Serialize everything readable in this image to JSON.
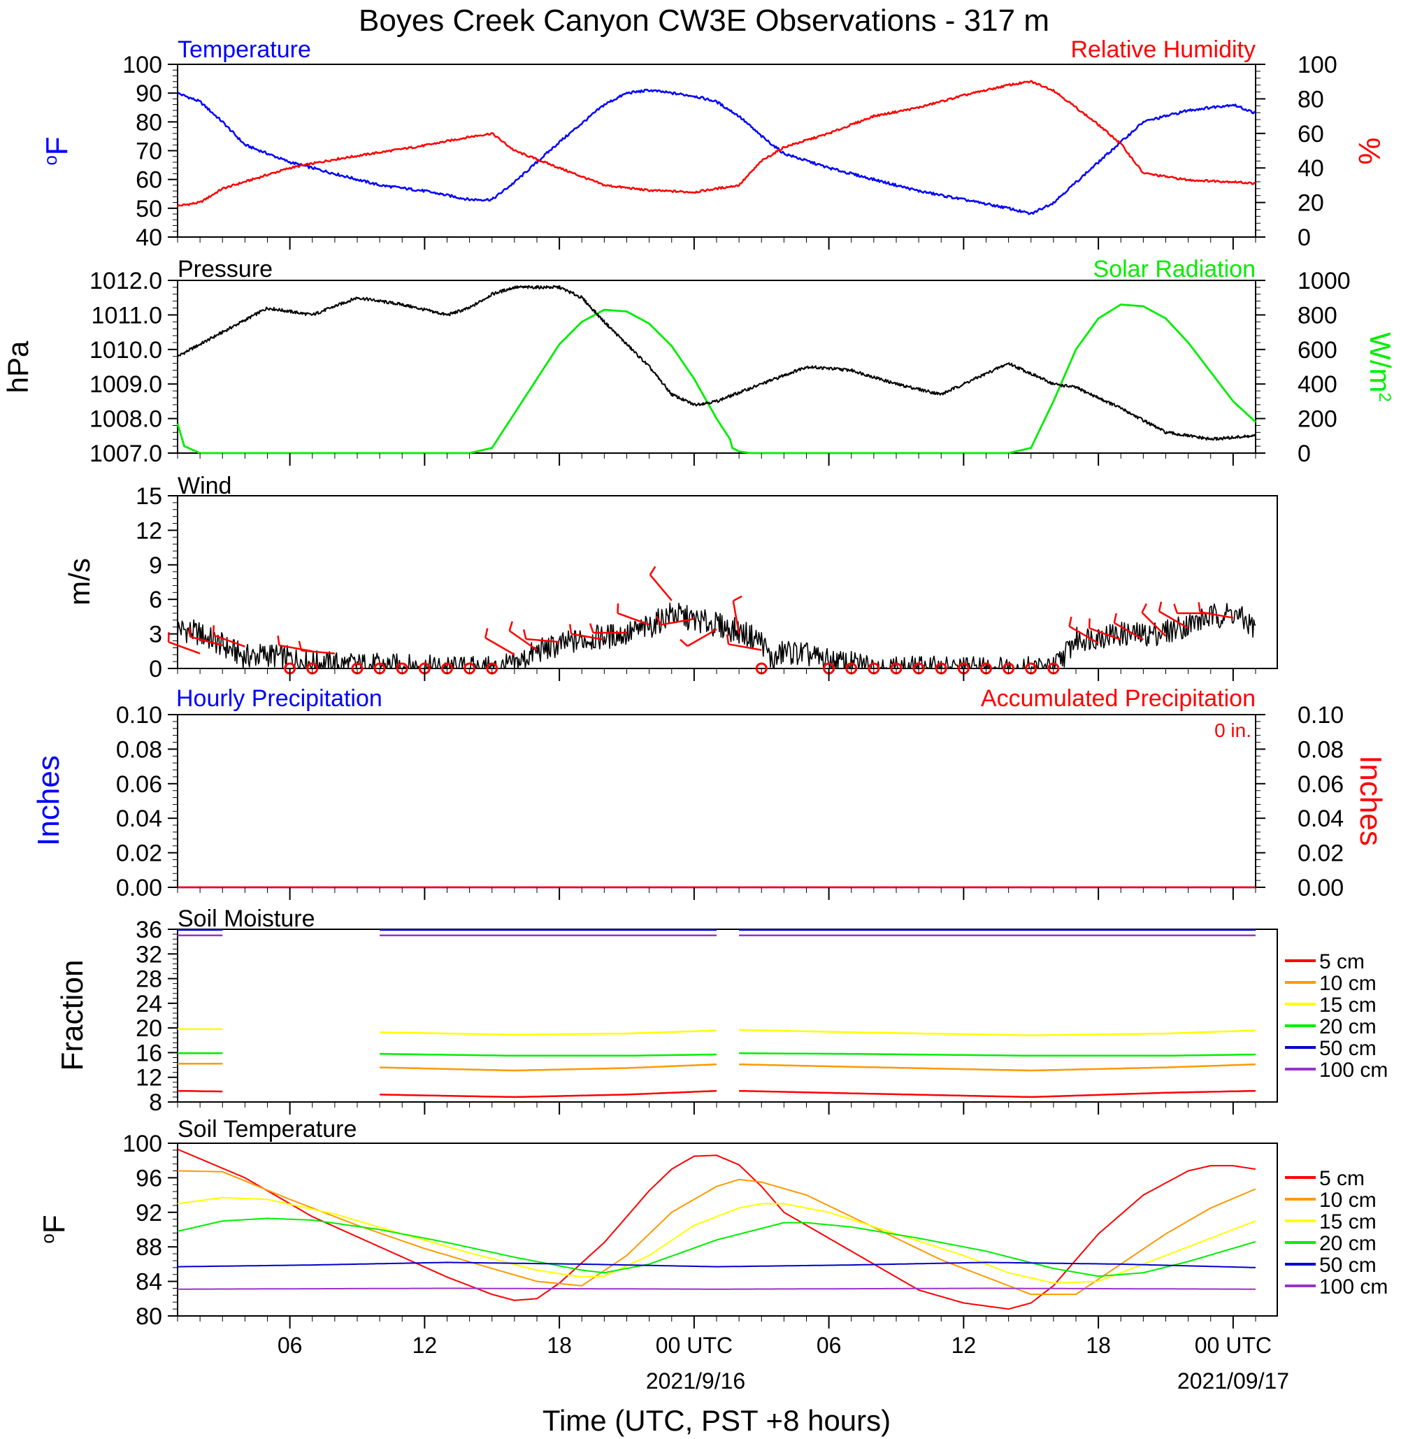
{
  "title": "Boyes Creek Canyon CW3E Observations - 317 m",
  "xaxis_title": "Time (UTC, PST +8 hours)",
  "x_ticks": [
    "06",
    "12",
    "18",
    "00 UTC",
    "06",
    "12",
    "18",
    "00 UTC"
  ],
  "date_labels": [
    "2021/9/16",
    "2021/09/17"
  ],
  "colors": {
    "temperature": "#0000ff",
    "humidity": "#ff0000",
    "pressure": "#000000",
    "solar": "#00ee00",
    "wind_speed": "#000000",
    "wind_barb": "#ff0000",
    "hourly_precip": "#0000ff",
    "accum_precip": "#ff0000",
    "depth_5": "#ff0000",
    "depth_10": "#ff9900",
    "depth_15": "#ffff00",
    "depth_20": "#00ee00",
    "depth_50": "#0000cc",
    "depth_100": "#9933cc"
  },
  "panels": {
    "temp_rh": {
      "left_title": "Temperature",
      "right_title": "Relative Humidity",
      "left_unit": "oF",
      "right_unit": "%",
      "left_ticks": [
        "40",
        "50",
        "60",
        "70",
        "80",
        "90",
        "100"
      ],
      "right_ticks": [
        "0",
        "20",
        "40",
        "60",
        "80",
        "100"
      ]
    },
    "pressure_solar": {
      "left_title": "Pressure",
      "right_title": "Solar Radiation",
      "left_unit": "hPa",
      "right_unit": "W/m2",
      "left_ticks": [
        "1007.0",
        "1008.0",
        "1009.0",
        "1010.0",
        "1011.0",
        "1012.0"
      ],
      "right_ticks": [
        "0",
        "200",
        "400",
        "600",
        "800",
        "1000"
      ]
    },
    "wind": {
      "left_title": "Wind",
      "left_unit": "m/s",
      "left_ticks": [
        "0",
        "3",
        "6",
        "9",
        "12",
        "15"
      ]
    },
    "precip": {
      "left_title": "Hourly Precipitation",
      "right_title": "Accumulated Precipitation",
      "accum_total": "0 in.",
      "left_unit": "Inches",
      "right_unit": "Inches",
      "left_ticks": [
        "0.00",
        "0.02",
        "0.04",
        "0.06",
        "0.08",
        "0.10"
      ],
      "right_ticks": [
        "0.00",
        "0.02",
        "0.04",
        "0.06",
        "0.08",
        "0.10"
      ]
    },
    "soil_moisture": {
      "left_title": "Soil Moisture",
      "left_unit": "Fraction",
      "left_ticks": [
        "8",
        "12",
        "16",
        "20",
        "24",
        "28",
        "32",
        "36"
      ],
      "legend": [
        "5 cm",
        "10 cm",
        "15 cm",
        "20 cm",
        "50 cm",
        "100 cm"
      ]
    },
    "soil_temp": {
      "left_title": "Soil Temperature",
      "left_unit": "oF",
      "left_ticks": [
        "80",
        "84",
        "88",
        "92",
        "96",
        "100"
      ],
      "legend": [
        "5 cm",
        "10 cm",
        "15 cm",
        "20 cm",
        "50 cm",
        "100 cm"
      ]
    }
  },
  "chart_data": [
    {
      "type": "line",
      "title": "Temperature",
      "x_unit": "hours since 2021-09-15 01 UTC",
      "ylabel": "oF",
      "ylim": [
        40,
        100
      ],
      "series": [
        {
          "name": "Temperature",
          "x": [
            0,
            1,
            2,
            3,
            5,
            7,
            9,
            11,
            13,
            14,
            15,
            17,
            19,
            20,
            21,
            22,
            23,
            24,
            25,
            26,
            27,
            29,
            31,
            33,
            35,
            37,
            38,
            39,
            41,
            43,
            45,
            47,
            48
          ],
          "y": [
            90,
            87,
            80,
            72,
            66,
            62,
            58,
            56,
            53,
            53,
            59,
            73,
            86,
            90,
            91,
            90,
            89,
            87,
            82,
            75,
            69,
            64,
            60,
            56,
            53,
            50,
            48,
            52,
            66,
            80,
            84,
            86,
            83
          ]
        }
      ]
    },
    {
      "type": "line",
      "title": "Relative Humidity",
      "ylabel": "%",
      "ylim": [
        0,
        100
      ],
      "series": [
        {
          "name": "Relative Humidity",
          "x": [
            0,
            1,
            2,
            3,
            5,
            7,
            9,
            11,
            13,
            14,
            15,
            17,
            19,
            21,
            23,
            24,
            25,
            26,
            27,
            29,
            31,
            33,
            35,
            37,
            38,
            39,
            41,
            42,
            43,
            45,
            47,
            48
          ],
          "y": [
            18,
            20,
            28,
            32,
            40,
            45,
            49,
            53,
            58,
            60,
            50,
            40,
            30,
            27,
            26,
            28,
            30,
            44,
            52,
            60,
            70,
            75,
            82,
            88,
            90,
            85,
            65,
            54,
            37,
            33,
            32,
            31
          ]
        }
      ]
    },
    {
      "type": "line",
      "title": "Pressure",
      "ylabel": "hPa",
      "ylim": [
        1007.0,
        1012.0
      ],
      "series": [
        {
          "name": "Pressure",
          "x": [
            0,
            2,
            4,
            6,
            8,
            10,
            12,
            13,
            14,
            15,
            17,
            18,
            19,
            21,
            22,
            23,
            24,
            26,
            28,
            30,
            32,
            34,
            35,
            37,
            38,
            39,
            40,
            42,
            44,
            46,
            48
          ],
          "y": [
            1009.8,
            1010.5,
            1011.2,
            1011.0,
            1011.5,
            1011.3,
            1011.0,
            1011.2,
            1011.6,
            1011.8,
            1011.8,
            1011.5,
            1010.8,
            1009.5,
            1008.7,
            1008.4,
            1008.5,
            1009.0,
            1009.5,
            1009.4,
            1009.0,
            1008.7,
            1009.0,
            1009.6,
            1009.3,
            1009.0,
            1008.9,
            1008.3,
            1007.6,
            1007.4,
            1007.5
          ]
        }
      ]
    },
    {
      "type": "area",
      "title": "Solar Radiation",
      "ylabel": "W/m2",
      "ylim": [
        0,
        1000
      ],
      "series": [
        {
          "name": "Solar Radiation",
          "x": [
            0,
            0.3,
            1,
            13,
            14,
            15,
            16,
            17,
            18,
            19,
            20,
            21,
            22,
            23,
            24,
            24.6,
            24.7,
            25,
            25.5,
            37,
            38,
            39,
            40,
            41,
            42,
            43,
            44,
            45,
            46,
            47,
            48
          ],
          "y": [
            170,
            40,
            0,
            0,
            30,
            230,
            430,
            630,
            760,
            830,
            820,
            750,
            620,
            430,
            200,
            80,
            30,
            10,
            0,
            0,
            30,
            300,
            600,
            780,
            860,
            850,
            780,
            640,
            470,
            300,
            180
          ]
        }
      ]
    },
    {
      "type": "line",
      "title": "Wind",
      "ylabel": "m/s",
      "ylim": [
        0,
        15
      ],
      "series": [
        {
          "name": "Wind Speed",
          "x": [
            0,
            1,
            2,
            3,
            4,
            6,
            8,
            10,
            12,
            14,
            15,
            16,
            18,
            20,
            21,
            22,
            23,
            24,
            25,
            26,
            26.5,
            27,
            28,
            29,
            30,
            31,
            32,
            33,
            34,
            36,
            38,
            39,
            40,
            41,
            42,
            43,
            44,
            45,
            46,
            47,
            48
          ],
          "y": [
            3.5,
            3.0,
            2.0,
            1.0,
            1.2,
            0.5,
            0.3,
            0.2,
            0,
            0,
            0.3,
            1.5,
            2.5,
            3.0,
            3.6,
            4.8,
            4.2,
            3.8,
            3.2,
            2.4,
            0.5,
            1.5,
            1.2,
            0.6,
            0.4,
            0.2,
            0,
            0,
            0,
            0,
            0,
            0,
            2.5,
            2.8,
            3.0,
            2.9,
            3.2,
            3.8,
            4.5,
            4.8,
            3.5
          ]
        }
      ]
    },
    {
      "type": "line",
      "title": "Hourly Precipitation",
      "ylabel": "Inches",
      "ylim": [
        0,
        0.1
      ],
      "series": [
        {
          "name": "Hourly Precipitation",
          "x": [
            0,
            48
          ],
          "y": [
            0,
            0
          ]
        },
        {
          "name": "Accumulated Precipitation",
          "x": [
            0,
            48
          ],
          "y": [
            0,
            0
          ]
        }
      ]
    },
    {
      "type": "line",
      "title": "Soil Moisture",
      "ylabel": "Fraction",
      "ylim": [
        8,
        36
      ],
      "series": [
        {
          "name": "5 cm",
          "x": [
            0,
            2,
            9,
            15,
            20,
            24,
            25,
            30,
            38,
            44,
            48
          ],
          "y": [
            9.8,
            9.7,
            9.2,
            8.8,
            9.2,
            9.8,
            9.8,
            9.4,
            8.8,
            9.5,
            9.8
          ]
        },
        {
          "name": "10 cm",
          "x": [
            0,
            2,
            9,
            15,
            20,
            24,
            25,
            30,
            38,
            44,
            48
          ],
          "y": [
            14.2,
            14.2,
            13.6,
            13.1,
            13.5,
            14.1,
            14.1,
            13.7,
            13.1,
            13.6,
            14.1
          ]
        },
        {
          "name": "15 cm",
          "x": [
            0,
            2,
            9,
            15,
            20,
            24,
            25,
            30,
            38,
            44,
            48
          ],
          "y": [
            19.8,
            19.8,
            19.3,
            18.9,
            19.1,
            19.6,
            19.7,
            19.3,
            18.8,
            19.1,
            19.6
          ]
        },
        {
          "name": "20 cm",
          "x": [
            0,
            2,
            9,
            15,
            20,
            24,
            25,
            30,
            38,
            44,
            48
          ],
          "y": [
            15.9,
            15.9,
            15.8,
            15.5,
            15.5,
            15.7,
            15.9,
            15.8,
            15.5,
            15.5,
            15.7
          ]
        },
        {
          "name": "50 cm",
          "x": [
            0,
            2,
            9,
            24,
            25,
            48
          ],
          "y": [
            35.9,
            35.9,
            35.9,
            35.9,
            35.9,
            35.9
          ]
        },
        {
          "name": "100 cm",
          "x": [
            0,
            2,
            9,
            24,
            25,
            48
          ],
          "y": [
            35.0,
            35.0,
            35.0,
            35.0,
            35.0,
            35.0
          ]
        }
      ]
    },
    {
      "type": "line",
      "title": "Soil Temperature",
      "ylabel": "oF",
      "ylim": [
        80,
        100
      ],
      "series": [
        {
          "name": "5 cm",
          "x": [
            0,
            3,
            6,
            9,
            12,
            14,
            15,
            16,
            17,
            19,
            21,
            22,
            23,
            24,
            25,
            26,
            27,
            29,
            31,
            33,
            35,
            37,
            38,
            39,
            40,
            41,
            43,
            45,
            46,
            47,
            48
          ],
          "y": [
            99.3,
            96.0,
            91.5,
            88.0,
            84.5,
            82.5,
            81.8,
            82.0,
            83.8,
            88.5,
            94.5,
            97.0,
            98.5,
            98.6,
            97.5,
            95.0,
            92.0,
            89.0,
            86.0,
            83.0,
            81.5,
            80.8,
            81.5,
            83.5,
            86.5,
            89.5,
            94.0,
            96.8,
            97.4,
            97.4,
            97.0
          ]
        },
        {
          "name": "10 cm",
          "x": [
            0,
            2,
            5,
            8,
            11,
            14,
            16,
            18,
            20,
            22,
            24,
            25,
            26,
            28,
            30,
            32,
            34,
            36,
            38,
            40,
            42,
            44,
            46,
            48
          ],
          "y": [
            96.8,
            96.7,
            93.5,
            90.5,
            87.8,
            85.5,
            84.0,
            83.5,
            87.0,
            92.0,
            95.0,
            95.8,
            95.5,
            94.0,
            91.5,
            89.0,
            86.5,
            84.5,
            82.5,
            82.5,
            86.0,
            89.5,
            92.5,
            94.7
          ]
        },
        {
          "name": "15 cm",
          "x": [
            0,
            2,
            4,
            7,
            10,
            13,
            16,
            18,
            19,
            21,
            23,
            25,
            26,
            27,
            29,
            32,
            35,
            37,
            39,
            41,
            43,
            45,
            48
          ],
          "y": [
            93.0,
            93.7,
            93.5,
            91.8,
            89.5,
            87.3,
            85.3,
            84.5,
            84.6,
            87.0,
            90.5,
            92.5,
            93.0,
            93.0,
            92.0,
            89.5,
            87.0,
            85.0,
            83.8,
            84.0,
            86.0,
            88.0,
            91.0
          ]
        },
        {
          "name": "20 cm",
          "x": [
            0,
            2,
            4,
            6,
            9,
            12,
            15,
            18,
            19,
            21,
            24,
            27,
            28,
            30,
            33,
            36,
            39,
            41,
            43,
            45,
            48
          ],
          "y": [
            89.8,
            91.0,
            91.3,
            91.1,
            90.0,
            88.5,
            86.8,
            85.3,
            85.0,
            86.0,
            88.8,
            90.8,
            90.8,
            90.3,
            89.0,
            87.5,
            85.5,
            84.6,
            85.0,
            86.3,
            88.6
          ]
        },
        {
          "name": "50 cm",
          "x": [
            0,
            6,
            12,
            18,
            24,
            30,
            36,
            42,
            48
          ],
          "y": [
            85.7,
            85.9,
            86.2,
            86.0,
            85.7,
            85.9,
            86.2,
            86.0,
            85.6
          ]
        },
        {
          "name": "100 cm",
          "x": [
            0,
            12,
            24,
            36,
            48
          ],
          "y": [
            83.1,
            83.2,
            83.1,
            83.2,
            83.1
          ]
        }
      ]
    },
    {
      "type": "scatter",
      "title": "Wind calm markers",
      "series": [
        {
          "name": "Calm",
          "x": [
            5,
            6,
            8,
            9,
            10,
            11,
            12,
            13,
            14,
            26,
            29,
            30,
            31,
            32,
            33,
            34,
            35,
            36,
            37,
            38,
            39
          ],
          "y": [
            0,
            0,
            0,
            0,
            0,
            0,
            0,
            0,
            0,
            0,
            0,
            0,
            0,
            0,
            0,
            0,
            0,
            0,
            0,
            0,
            0
          ]
        }
      ]
    },
    {
      "type": "line",
      "title": "Wind barbs",
      "series": [
        {
          "name": "Wind direction (deg)",
          "x": [
            1,
            2,
            3,
            6,
            7,
            15,
            16,
            17,
            19,
            20,
            21,
            22,
            23,
            24,
            25,
            26,
            41,
            42,
            43,
            44,
            45,
            46,
            47
          ],
          "y": [
            290,
            285,
            290,
            280,
            275,
            300,
            305,
            275,
            280,
            270,
            290,
            320,
            260,
            240,
            350,
            280,
            300,
            290,
            300,
            315,
            300,
            270,
            280
          ],
          "speed": [
            1.3,
            2.0,
            1.9,
            1.5,
            1.3,
            1.2,
            1.6,
            2.3,
            2.5,
            3.1,
            3.8,
            5.9,
            4.3,
            3.4,
            3.0,
            1.6,
            2.2,
            2.5,
            2.5,
            2.8,
            3.5,
            4.8,
            4.4
          ]
        }
      ]
    }
  ]
}
